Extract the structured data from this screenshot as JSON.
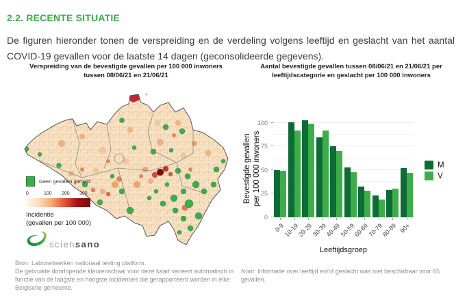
{
  "page": {
    "heading": "2.2. RECENTE SITUATIE",
    "paragraph": "De figuren hieronder tonen de verspreiding en de verdeling volgens leeftijd en geslacht van het aantal COVID-19 gevallen voor de laatste 14 dagen (geconsolideerde gegevens)."
  },
  "map_figure": {
    "title": "Verspreiding van de bevestigde gevallen per 100 000 inwoners tussen 08/06/21 en 21/06/21",
    "legend": {
      "no_cases_label": "Geen gevallen gemeld",
      "no_cases_color": "#3CAE49",
      "scale_ticks": [
        "0",
        "100",
        "200",
        "300"
      ],
      "scale_colors": [
        "#FFF8F0",
        "#FBDCBB",
        "#F5A873",
        "#E05338",
        "#A50F15",
        "#7A0C10"
      ],
      "scale_title_line1": "Incidentie",
      "scale_title_line2": "(gevallen per 100 000)"
    },
    "logo_light": "scien",
    "logo_bold": "sano",
    "note1": "Bron: Labonetwerken nationaal testing platform.",
    "note2": "De gebruikte doorlopende kleurenschaal voor deze kaart varieert automatisch in functie van de laagste en hoogste incidenties die gerapporteerd worden in elke Belgische gemeente."
  },
  "chart_figure": {
    "title": "Aantal bevestigde gevallen tussen 08/06/21 en 21/06/21 per leeftijdscategorie en geslacht per 100 000 inwoners",
    "ylabel_line1": "Bevestigde gevallen",
    "ylabel_line2": "per 100 000 inwoners",
    "note": "Noot: Informatie over leeftijd en/of geslacht was niet beschikbaar voor 65 gevallen."
  },
  "chart_data": {
    "type": "bar",
    "categories": [
      "0-9",
      "10-19",
      "20-29",
      "30-39",
      "40-49",
      "50-59",
      "60-69",
      "70-79",
      "80-89",
      "90+"
    ],
    "series": [
      {
        "name": "M",
        "color": "#0E6B35",
        "values": [
          50,
          100.5,
          103,
          84.5,
          75,
          53,
          32.5,
          23.5,
          29,
          52
        ]
      },
      {
        "name": "V",
        "color": "#3CAE49",
        "values": [
          49.5,
          92,
          99,
          92,
          70.5,
          48,
          28,
          18.5,
          30.5,
          47
        ]
      }
    ],
    "title": "Aantal bevestigde gevallen tussen 08/06/21 en 21/06/21 per leeftijdscategorie en geslacht per 100 000 inwoners",
    "xlabel": "Leeftijdsgroep",
    "ylabel": "Bevestigde gevallen per 100 000 inwoners",
    "ylim": [
      0,
      105
    ],
    "yticks": [
      0,
      25,
      50,
      75,
      100
    ],
    "yticks_minor": [
      12.5,
      37.5,
      62.5,
      87.5
    ],
    "grid": true,
    "legend_position": "right"
  },
  "colors": {
    "heading_green": "#3BAE49",
    "bar_m": "#0E6B35",
    "bar_v": "#3CAE49"
  }
}
